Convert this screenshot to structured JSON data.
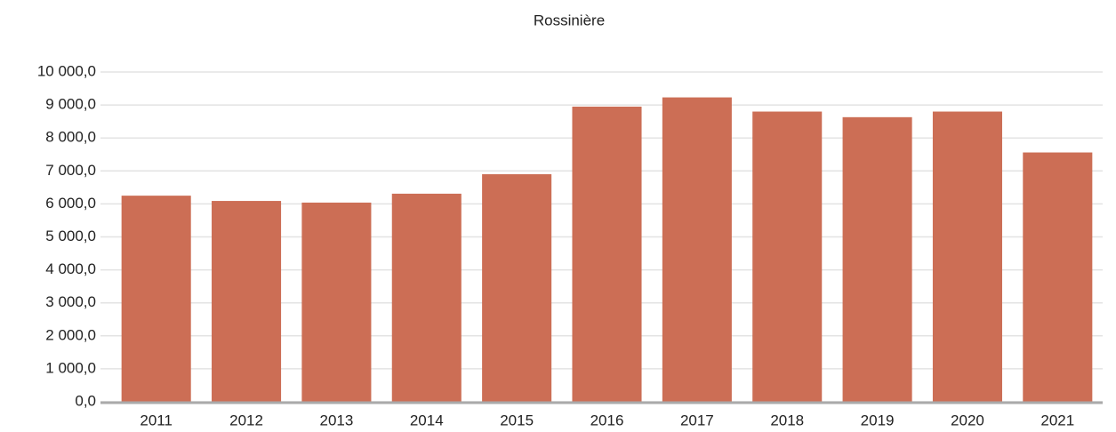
{
  "chart_data": {
    "type": "bar",
    "subtitle": "Rossinière",
    "categories": [
      "2011",
      "2012",
      "2013",
      "2014",
      "2015",
      "2016",
      "2017",
      "2018",
      "2019",
      "2020",
      "2021"
    ],
    "values": [
      6250,
      6090,
      6040,
      6310,
      6900,
      8950,
      9230,
      8800,
      8630,
      8800,
      7560
    ],
    "color": "#cc6e55",
    "ylim": [
      0,
      10000
    ],
    "yticks": [
      {
        "value": 0,
        "label": "0,0"
      },
      {
        "value": 1000,
        "label": "1 000,0"
      },
      {
        "value": 2000,
        "label": "2 000,0"
      },
      {
        "value": 3000,
        "label": "3 000,0"
      },
      {
        "value": 4000,
        "label": "4 000,0"
      },
      {
        "value": 5000,
        "label": "5 000,0"
      },
      {
        "value": 6000,
        "label": "6 000,0"
      },
      {
        "value": 7000,
        "label": "7 000,0"
      },
      {
        "value": 8000,
        "label": "8 000,0"
      },
      {
        "value": 9000,
        "label": "9 000,0"
      },
      {
        "value": 10000,
        "label": "10 000,0"
      }
    ],
    "grid": true
  }
}
